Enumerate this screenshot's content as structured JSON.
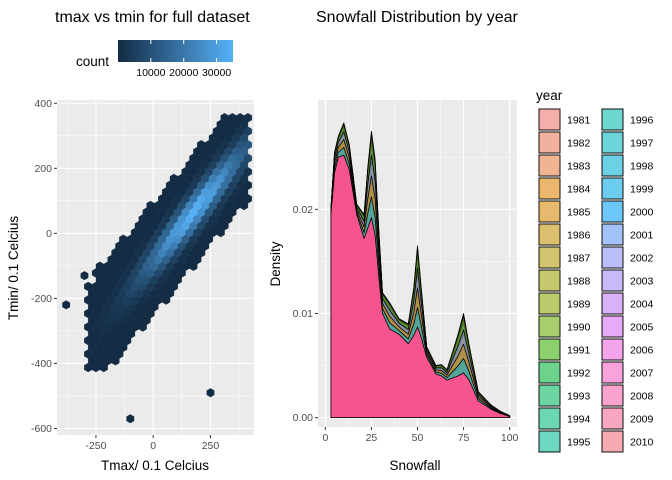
{
  "chart_data": [
    {
      "type": "hexbin",
      "title": "tmax vs tmin for full dataset",
      "xlabel": "Tmax/ 0.1 Celcius",
      "ylabel": "Tmin/ 0.1 Celcius",
      "xlim": [
        -420,
        440
      ],
      "ylim": [
        -620,
        410
      ],
      "xticks": [
        -250,
        0,
        250
      ],
      "xtick_labels": [
        "-250",
        "0",
        "250"
      ],
      "yticks": [
        -600,
        -400,
        -200,
        0,
        200,
        400
      ],
      "ytick_labels": [
        "-600",
        "-400",
        "-200",
        "0",
        "200",
        "400"
      ],
      "grid": true,
      "fill_legend": {
        "title": "count",
        "ticks": [
          10000,
          20000,
          30000
        ],
        "tick_labels": [
          "10000",
          "20000",
          "30000"
        ],
        "range": [
          1,
          35000
        ],
        "low_color": "#132B43",
        "high_color": "#56B1F7",
        "placement": "top"
      },
      "density_ridge": {
        "slope": 0.85,
        "intercept": -85,
        "spread": 70,
        "peak_count": 35000
      },
      "point_cloud_extent": {
        "tmax_min": -300,
        "tmax_max": 420,
        "tmin_min": -420,
        "tmin_max": 360
      },
      "outliers": [
        {
          "x": -380,
          "y": -220
        },
        {
          "x": -300,
          "y": -130
        },
        {
          "x": -100,
          "y": -570
        },
        {
          "x": 250,
          "y": -490
        }
      ]
    },
    {
      "type": "density",
      "title": "Snowfall Distribution by year",
      "xlabel": "Snowfall",
      "ylabel": "Density",
      "xlim": [
        -4,
        104
      ],
      "ylim": [
        -0.0009,
        0.0305
      ],
      "xticks": [
        0,
        25,
        50,
        75,
        100
      ],
      "xtick_labels": [
        "0",
        "25",
        "50",
        "75",
        "100"
      ],
      "yticks": [
        0.0,
        0.01,
        0.02
      ],
      "ytick_labels": [
        "0.00",
        "0.01",
        "0.02"
      ],
      "grid": true,
      "legend": {
        "title": "year",
        "placement": "right",
        "columns": 2
      },
      "x_grid": [
        3,
        5,
        7,
        10,
        13,
        17,
        21,
        23,
        25,
        27,
        29,
        31,
        35,
        40,
        45,
        48,
        50,
        52,
        55,
        60,
        63,
        66,
        72,
        75,
        78,
        83,
        90,
        95,
        100
      ],
      "density_low": [
        0.0195,
        0.0235,
        0.025,
        0.0252,
        0.0238,
        0.0195,
        0.0172,
        0.0182,
        0.0192,
        0.0175,
        0.0135,
        0.01,
        0.0085,
        0.008,
        0.0071,
        0.0079,
        0.0087,
        0.0077,
        0.0058,
        0.0042,
        0.004,
        0.0036,
        0.004,
        0.0043,
        0.0036,
        0.0016,
        0.0008,
        0.0004,
        0.0001
      ],
      "density_high": [
        0.02,
        0.0255,
        0.027,
        0.0283,
        0.0262,
        0.0205,
        0.0195,
        0.024,
        0.0275,
        0.0248,
        0.018,
        0.012,
        0.011,
        0.0095,
        0.009,
        0.0125,
        0.0165,
        0.0125,
        0.0068,
        0.005,
        0.0051,
        0.0046,
        0.008,
        0.01,
        0.007,
        0.0025,
        0.0012,
        0.0006,
        0.0002
      ],
      "series": [
        {
          "name": "1981",
          "color": "#F8766D"
        },
        {
          "name": "1982",
          "color": "#F37B59"
        },
        {
          "name": "1983",
          "color": "#ED8141"
        },
        {
          "name": "1984",
          "color": "#E58700"
        },
        {
          "name": "1985",
          "color": "#DC8D00"
        },
        {
          "name": "1986",
          "color": "#CA9700"
        },
        {
          "name": "1987",
          "color": "#B79F00"
        },
        {
          "name": "1988",
          "color": "#A3A500"
        },
        {
          "name": "1989",
          "color": "#8BAB00"
        },
        {
          "name": "1990",
          "color": "#6BB100"
        },
        {
          "name": "1991",
          "color": "#39B600"
        },
        {
          "name": "1992",
          "color": "#00BA38"
        },
        {
          "name": "1993",
          "color": "#00BD5F"
        },
        {
          "name": "1994",
          "color": "#00BF7D"
        },
        {
          "name": "1995",
          "color": "#00C19A"
        },
        {
          "name": "1996",
          "color": "#00BFB3"
        },
        {
          "name": "1997",
          "color": "#00BCC9"
        },
        {
          "name": "1998",
          "color": "#00B6DB"
        },
        {
          "name": "1999",
          "color": "#00AEEB"
        },
        {
          "name": "2000",
          "color": "#00A5FF"
        },
        {
          "name": "2001",
          "color": "#619CFF"
        },
        {
          "name": "2002",
          "color": "#8C94FF"
        },
        {
          "name": "2003",
          "color": "#A58AFF"
        },
        {
          "name": "2004",
          "color": "#C77CFF"
        },
        {
          "name": "2005",
          "color": "#DC71FA"
        },
        {
          "name": "2006",
          "color": "#F564E3"
        },
        {
          "name": "2007",
          "color": "#FF61C9"
        },
        {
          "name": "2008",
          "color": "#FF64B0"
        },
        {
          "name": "2009",
          "color": "#FF6A98"
        },
        {
          "name": "2010",
          "color": "#FA7180"
        }
      ]
    }
  ]
}
